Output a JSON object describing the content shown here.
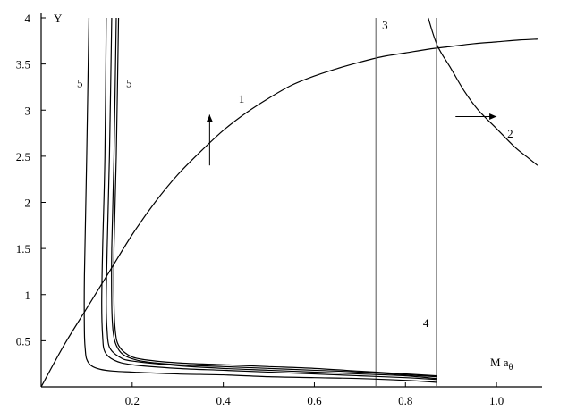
{
  "chart_data": {
    "type": "line",
    "xlim": [
      0,
      1.1
    ],
    "ylim": [
      0,
      4
    ],
    "x_ticks": [
      0.2,
      0.4,
      0.6,
      0.8,
      1.0
    ],
    "x_tick_labels": [
      "0.2",
      "0.4",
      "0.6",
      "0.8",
      "1.0"
    ],
    "y_ticks": [
      0.5,
      1,
      1.5,
      2,
      2.5,
      3,
      3.5,
      4
    ],
    "y_tick_labels": [
      "0.5",
      "1",
      "1.5",
      "2",
      "2.5",
      "3",
      "3.5",
      "4"
    ],
    "ylabel": "Y",
    "xlabel": "M a",
    "xlabel_sub": "θ",
    "grid": false,
    "series": [
      {
        "label": "1",
        "label_pos": [
          0.44,
          3.08
        ],
        "points": [
          [
            0,
            0
          ],
          [
            0.05,
            0.45
          ],
          [
            0.1,
            0.85
          ],
          [
            0.15,
            1.25
          ],
          [
            0.2,
            1.65
          ],
          [
            0.25,
            2.0
          ],
          [
            0.3,
            2.3
          ],
          [
            0.35,
            2.55
          ],
          [
            0.4,
            2.78
          ],
          [
            0.45,
            2.97
          ],
          [
            0.5,
            3.13
          ],
          [
            0.55,
            3.27
          ],
          [
            0.6,
            3.37
          ],
          [
            0.65,
            3.45
          ],
          [
            0.7,
            3.52
          ],
          [
            0.75,
            3.58
          ],
          [
            0.8,
            3.62
          ],
          [
            0.85,
            3.66
          ],
          [
            0.9,
            3.69
          ],
          [
            0.95,
            3.72
          ],
          [
            1.0,
            3.74
          ],
          [
            1.05,
            3.76
          ],
          [
            1.09,
            3.77
          ]
        ]
      },
      {
        "label": "2",
        "label_pos": [
          1.03,
          2.7
        ],
        "points": [
          [
            0.85,
            4.0
          ],
          [
            0.87,
            3.7
          ],
          [
            0.9,
            3.45
          ],
          [
            0.93,
            3.2
          ],
          [
            0.96,
            3.0
          ],
          [
            1.0,
            2.8
          ],
          [
            1.04,
            2.6
          ],
          [
            1.07,
            2.48
          ],
          [
            1.09,
            2.4
          ]
        ]
      },
      {
        "label": "3",
        "label_pos": [
          0.755,
          3.88
        ],
        "points": [
          [
            0.735,
            0
          ],
          [
            0.735,
            4.0
          ]
        ]
      },
      {
        "label": "4",
        "label_pos": [
          0.845,
          0.65
        ],
        "points": [
          [
            0.868,
            0
          ],
          [
            0.868,
            4.0
          ]
        ]
      },
      {
        "label": "5",
        "label_pos": [
          0.085,
          3.25
        ],
        "points": [
          [
            0.105,
            4.0
          ],
          [
            0.1,
            2.5
          ],
          [
            0.095,
            1.2
          ],
          [
            0.095,
            0.6
          ],
          [
            0.097,
            0.4
          ],
          [
            0.1,
            0.3
          ],
          [
            0.11,
            0.23
          ],
          [
            0.13,
            0.19
          ],
          [
            0.16,
            0.17
          ],
          [
            0.2,
            0.16
          ],
          [
            0.3,
            0.14
          ],
          [
            0.4,
            0.13
          ],
          [
            0.5,
            0.11
          ],
          [
            0.6,
            0.1
          ],
          [
            0.7,
            0.09
          ],
          [
            0.8,
            0.07
          ],
          [
            0.868,
            0.05
          ]
        ]
      },
      {
        "label": "5",
        "label_pos": [
          0.193,
          3.25
        ],
        "points": [
          [
            0.165,
            4.0
          ],
          [
            0.16,
            2.5
          ],
          [
            0.155,
            1.5
          ],
          [
            0.155,
            0.9
          ],
          [
            0.158,
            0.6
          ],
          [
            0.165,
            0.45
          ],
          [
            0.18,
            0.35
          ],
          [
            0.21,
            0.29
          ],
          [
            0.25,
            0.26
          ],
          [
            0.3,
            0.24
          ],
          [
            0.4,
            0.22
          ],
          [
            0.5,
            0.2
          ],
          [
            0.6,
            0.18
          ],
          [
            0.7,
            0.16
          ],
          [
            0.8,
            0.13
          ],
          [
            0.868,
            0.11
          ]
        ]
      },
      {
        "label": "",
        "points": [
          [
            0.143,
            4.0
          ],
          [
            0.14,
            2.5
          ],
          [
            0.135,
            1.5
          ],
          [
            0.133,
            0.9
          ],
          [
            0.135,
            0.55
          ],
          [
            0.14,
            0.38
          ],
          [
            0.16,
            0.29
          ],
          [
            0.2,
            0.24
          ],
          [
            0.3,
            0.2
          ],
          [
            0.4,
            0.18
          ],
          [
            0.5,
            0.16
          ],
          [
            0.6,
            0.14
          ],
          [
            0.7,
            0.12
          ],
          [
            0.8,
            0.1
          ],
          [
            0.868,
            0.08
          ]
        ]
      },
      {
        "label": "",
        "points": [
          [
            0.155,
            4.0
          ],
          [
            0.15,
            2.5
          ],
          [
            0.145,
            1.5
          ],
          [
            0.143,
            0.9
          ],
          [
            0.145,
            0.6
          ],
          [
            0.15,
            0.43
          ],
          [
            0.17,
            0.33
          ],
          [
            0.2,
            0.28
          ],
          [
            0.3,
            0.23
          ],
          [
            0.4,
            0.2
          ],
          [
            0.5,
            0.18
          ],
          [
            0.6,
            0.16
          ],
          [
            0.7,
            0.14
          ],
          [
            0.8,
            0.12
          ],
          [
            0.868,
            0.09
          ]
        ]
      },
      {
        "label": "",
        "points": [
          [
            0.17,
            4.0
          ],
          [
            0.165,
            2.5
          ],
          [
            0.16,
            1.5
          ],
          [
            0.16,
            0.9
          ],
          [
            0.163,
            0.6
          ],
          [
            0.17,
            0.45
          ],
          [
            0.19,
            0.35
          ],
          [
            0.22,
            0.3
          ],
          [
            0.3,
            0.26
          ],
          [
            0.4,
            0.24
          ],
          [
            0.5,
            0.22
          ],
          [
            0.6,
            0.2
          ],
          [
            0.7,
            0.17
          ],
          [
            0.8,
            0.14
          ],
          [
            0.868,
            0.12
          ]
        ]
      }
    ],
    "arrows": [
      {
        "from": [
          0.37,
          2.4
        ],
        "to": [
          0.37,
          2.95
        ]
      },
      {
        "from": [
          0.91,
          2.93
        ],
        "to": [
          1.0,
          2.93
        ]
      }
    ]
  }
}
